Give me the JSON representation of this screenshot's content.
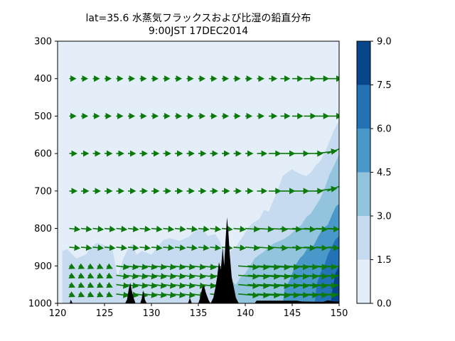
{
  "chart_data": {
    "type": "contour-quiver",
    "title_line1": "lat=35.6 水蒸気フラックスおよび比湿の鉛直分布",
    "title_line2": "9:00JST 17DEC2014",
    "xlabel": "",
    "ylabel": "",
    "xlim": [
      120,
      150
    ],
    "ylim": [
      1000,
      300
    ],
    "xticks": [
      120,
      125,
      130,
      135,
      140,
      145,
      150
    ],
    "yticks": [
      300,
      400,
      500,
      600,
      700,
      800,
      900,
      1000
    ],
    "xtick_labels": [
      "120",
      "125",
      "130",
      "135",
      "140",
      "145",
      "150"
    ],
    "ytick_labels": [
      "300",
      "400",
      "500",
      "600",
      "700",
      "800",
      "900",
      "1000"
    ],
    "colorbar": {
      "levels": [
        0.0,
        1.5,
        3.0,
        4.5,
        6.0,
        7.5,
        9.0
      ],
      "labels": [
        "0.0",
        "1.5",
        "3.0",
        "4.5",
        "6.0",
        "7.5",
        "9.0"
      ],
      "colors": [
        "#e4eef9",
        "#c6dbef",
        "#93c4de",
        "#4a98c9",
        "#2272b5",
        "#08468b"
      ]
    },
    "shading_layers": [
      {
        "level": 1,
        "profile": [
          [
            120.5,
            1000
          ],
          [
            120.5,
            860
          ],
          [
            121,
            855
          ],
          [
            122,
            880
          ],
          [
            123,
            870
          ],
          [
            123.6,
            850
          ],
          [
            124.2,
            838
          ],
          [
            125,
            845
          ],
          [
            125.8,
            850
          ],
          [
            126.4,
            930
          ],
          [
            127,
            880
          ],
          [
            127.6,
            850
          ],
          [
            128,
            840
          ],
          [
            128.4,
            870
          ],
          [
            129,
            860
          ],
          [
            130,
            870
          ],
          [
            130.8,
            845
          ],
          [
            131.3,
            830
          ],
          [
            132,
            826
          ],
          [
            133,
            833
          ],
          [
            134,
            822
          ],
          [
            134.5,
            810
          ],
          [
            135,
            802
          ],
          [
            135.5,
            800
          ],
          [
            136,
            820
          ],
          [
            136.8,
            815
          ],
          [
            137.2,
            830
          ],
          [
            137.6,
            855
          ],
          [
            138.2,
            865
          ],
          [
            139,
            848
          ],
          [
            139.8,
            820
          ],
          [
            140.3,
            798
          ],
          [
            140.8,
            785
          ],
          [
            141.5,
            775
          ],
          [
            142,
            750
          ],
          [
            142.5,
            755
          ],
          [
            143,
            725
          ],
          [
            143.4,
            700
          ],
          [
            144,
            660
          ],
          [
            144.5,
            650
          ],
          [
            145,
            642
          ],
          [
            145.5,
            650
          ],
          [
            146,
            656
          ],
          [
            146.5,
            660
          ],
          [
            147,
            650
          ],
          [
            147.5,
            632
          ],
          [
            148,
            620
          ],
          [
            148.6,
            590
          ],
          [
            149,
            565
          ],
          [
            149.4,
            540
          ],
          [
            149.8,
            520
          ],
          [
            150,
            515
          ],
          [
            150,
            1000
          ]
        ]
      },
      {
        "level": 2,
        "profile": [
          [
            138.2,
            1000
          ],
          [
            138.3,
            960
          ],
          [
            138.5,
            940
          ],
          [
            139,
            950
          ],
          [
            139.5,
            930
          ],
          [
            140,
            920
          ],
          [
            140.5,
            900
          ],
          [
            141,
            880
          ],
          [
            141.5,
            870
          ],
          [
            142,
            862
          ],
          [
            142.5,
            850
          ],
          [
            143,
            840
          ],
          [
            143.5,
            835
          ],
          [
            144,
            830
          ],
          [
            144.5,
            822
          ],
          [
            145,
            812
          ],
          [
            145.5,
            800
          ],
          [
            146,
            790
          ],
          [
            146.5,
            770
          ],
          [
            147,
            760
          ],
          [
            147.5,
            740
          ],
          [
            148,
            720
          ],
          [
            148.5,
            690
          ],
          [
            149,
            655
          ],
          [
            149.5,
            630
          ],
          [
            150,
            600
          ],
          [
            150,
            1000
          ]
        ]
      },
      {
        "level": 3,
        "profile": [
          [
            144,
            1000
          ],
          [
            144.2,
            960
          ],
          [
            144.7,
            940
          ],
          [
            145.3,
            900
          ],
          [
            145.8,
            880
          ],
          [
            146.2,
            870
          ],
          [
            146.7,
            850
          ],
          [
            147.3,
            845
          ],
          [
            147.8,
            820
          ],
          [
            148.3,
            800
          ],
          [
            148.8,
            790
          ],
          [
            149.3,
            760
          ],
          [
            149.7,
            740
          ],
          [
            150,
            735
          ],
          [
            150,
            1000
          ]
        ]
      },
      {
        "level": 4,
        "profile": [
          [
            147.4,
            1000
          ],
          [
            147.6,
            950
          ],
          [
            148,
            920
          ],
          [
            148.4,
            900
          ],
          [
            148.8,
            870
          ],
          [
            149.2,
            850
          ],
          [
            149.6,
            830
          ],
          [
            150,
            820
          ],
          [
            150,
            1000
          ]
        ]
      },
      {
        "level": 5,
        "profile": [
          [
            149.1,
            1000
          ],
          [
            149.3,
            960
          ],
          [
            149.6,
            920
          ],
          [
            150,
            900
          ],
          [
            150,
            1000
          ]
        ]
      }
    ],
    "vector_levels": [
      400,
      500,
      600,
      700,
      800,
      850,
      900,
      925,
      950,
      975
    ],
    "vector_color": "#0b7a0b",
    "terrain_color": "#000000",
    "terrain": [
      [
        120,
        1000
      ],
      [
        121.3,
        1000
      ],
      [
        121.4,
        990
      ],
      [
        121.6,
        1000
      ],
      [
        127.2,
        1000
      ],
      [
        127.4,
        990
      ],
      [
        127.6,
        960
      ],
      [
        127.75,
        945
      ],
      [
        127.9,
        965
      ],
      [
        128.1,
        985
      ],
      [
        128.3,
        1000
      ],
      [
        128.8,
        1000
      ],
      [
        129.0,
        985
      ],
      [
        129.15,
        965
      ],
      [
        129.3,
        990
      ],
      [
        129.5,
        1000
      ],
      [
        133.9,
        1000
      ],
      [
        134.1,
        985
      ],
      [
        134.3,
        1000
      ],
      [
        135.0,
        1000
      ],
      [
        135.2,
        985
      ],
      [
        135.4,
        960
      ],
      [
        135.6,
        952
      ],
      [
        135.8,
        972
      ],
      [
        136.1,
        992
      ],
      [
        136.3,
        1000
      ],
      [
        136.6,
        985
      ],
      [
        136.8,
        960
      ],
      [
        137.0,
        930
      ],
      [
        137.2,
        890
      ],
      [
        137.4,
        910
      ],
      [
        137.6,
        850
      ],
      [
        137.75,
        900
      ],
      [
        137.9,
        830
      ],
      [
        138.05,
        770
      ],
      [
        138.2,
        810
      ],
      [
        138.35,
        870
      ],
      [
        138.55,
        930
      ],
      [
        138.8,
        960
      ],
      [
        139.0,
        985
      ],
      [
        139.3,
        1000
      ],
      [
        141.0,
        1000
      ],
      [
        141.2,
        993
      ],
      [
        145.5,
        993
      ],
      [
        146,
        995
      ],
      [
        148.3,
        996
      ],
      [
        148.8,
        992
      ],
      [
        149.4,
        995
      ],
      [
        150,
        995
      ],
      [
        150,
        1000
      ]
    ]
  }
}
